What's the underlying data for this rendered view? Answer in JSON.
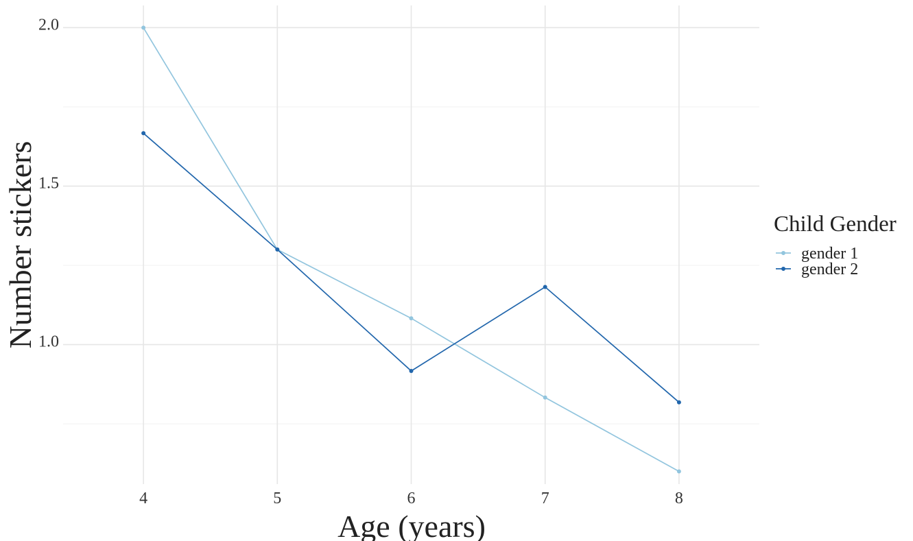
{
  "chart_data": {
    "type": "line",
    "title": "",
    "xlabel": "Age (years)",
    "ylabel": "Number stickers",
    "x": [
      4,
      5,
      6,
      7,
      8
    ],
    "x_tick_labels": [
      "4",
      "5",
      "6",
      "7",
      "8"
    ],
    "y_tick_values": [
      1.0,
      1.5,
      2.0
    ],
    "y_tick_labels": [
      "1.0",
      "1.5",
      "2.0"
    ],
    "xlim": [
      3.4,
      8.6
    ],
    "ylim": [
      0.56,
      2.07
    ],
    "grid": true,
    "legend": {
      "title": "Child Gender",
      "placement": "right"
    },
    "series": [
      {
        "name": "gender 1",
        "color": "#92c5de",
        "values": [
          2.0,
          1.3,
          1.083,
          0.833,
          0.6
        ]
      },
      {
        "name": "gender 2",
        "color": "#2166ac",
        "values": [
          1.667,
          1.3,
          0.917,
          1.182,
          0.818
        ]
      }
    ]
  }
}
